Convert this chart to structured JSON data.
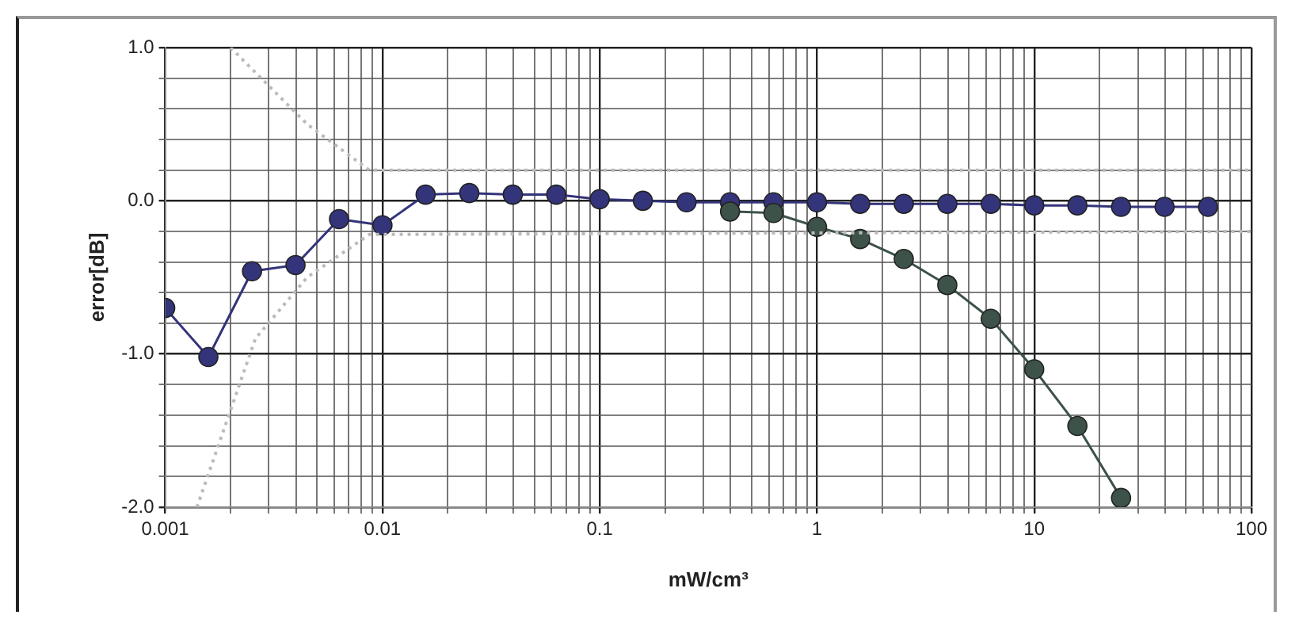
{
  "chart_data": {
    "type": "line",
    "xlabel": "mW/cm³",
    "ylabel": "error[dB]",
    "log": "x",
    "grid": true,
    "legend": false,
    "marker": "circle",
    "line_style": "solid",
    "xlim": [
      0.001,
      100
    ],
    "xticks": [
      0.001,
      {
        "value": 0.002,
        "label": null
      },
      {
        "value": 0.003,
        "label": null
      },
      {
        "value": 0.004,
        "label": null
      },
      {
        "value": 0.005,
        "label": null
      },
      {
        "value": 0.006,
        "label": null
      },
      {
        "value": 0.007,
        "label": null
      },
      {
        "value": 0.008,
        "label": null
      },
      {
        "value": 0.009,
        "label": null
      },
      0.01,
      {
        "value": 0.02,
        "label": null
      },
      {
        "value": 0.03,
        "label": null
      },
      {
        "value": 0.04,
        "label": null
      },
      {
        "value": 0.05,
        "label": null
      },
      {
        "value": 0.06,
        "label": null
      },
      {
        "value": 0.07,
        "label": null
      },
      {
        "value": 0.08,
        "label": null
      },
      {
        "value": 0.09,
        "label": null
      },
      0.1,
      {
        "value": 0.2,
        "label": null
      },
      {
        "value": 0.3,
        "label": null
      },
      {
        "value": 0.4,
        "label": null
      },
      {
        "value": 0.5,
        "label": null
      },
      {
        "value": 0.6,
        "label": null
      },
      {
        "value": 0.7,
        "label": null
      },
      {
        "value": 0.8,
        "label": null
      },
      {
        "value": 0.9,
        "label": null
      },
      1,
      {
        "value": 2,
        "label": null
      },
      {
        "value": 3,
        "label": null
      },
      {
        "value": 4,
        "label": null
      },
      {
        "value": 5,
        "label": null
      },
      {
        "value": 6,
        "label": null
      },
      {
        "value": 7,
        "label": null
      },
      {
        "value": 8,
        "label": null
      },
      {
        "value": 9,
        "label": null
      },
      10,
      {
        "value": 20,
        "label": null
      },
      {
        "value": 30,
        "label": null
      },
      {
        "value": 40,
        "label": null
      },
      {
        "value": 50,
        "label": null
      },
      {
        "value": 60,
        "label": null
      },
      {
        "value": 70,
        "label": null
      },
      {
        "value": 80,
        "label": null
      },
      {
        "value": 90,
        "label": null
      },
      100
    ],
    "ylim": [
      -2,
      1
    ],
    "yticks": [
      {
        "value": -2,
        "label": "-2.0"
      },
      {
        "value": -1.8,
        "label": null
      },
      {
        "value": -1.6,
        "label": null
      },
      {
        "value": -1.4,
        "label": null
      },
      {
        "value": -1.2,
        "label": null
      },
      {
        "value": -1,
        "label": "-1.0"
      },
      {
        "value": -0.8,
        "label": null
      },
      {
        "value": -0.6,
        "label": null
      },
      {
        "value": -0.4,
        "label": null
      },
      {
        "value": -0.2,
        "label": null
      },
      {
        "value": 0,
        "label": "0.0"
      },
      {
        "value": 0.2,
        "label": null
      },
      {
        "value": 0.4,
        "label": null
      },
      {
        "value": 0.6,
        "label": null
      },
      {
        "value": 0.8,
        "label": null
      },
      {
        "value": 1,
        "label": "1.0"
      }
    ],
    "series": [
      {
        "color": "#bbbbbb",
        "marker": "none",
        "line_style": "dotted",
        "x": [
          0.002,
          0.0045,
          0.0087,
          100
        ],
        "values": [
          1.0,
          0.5,
          0.2,
          0.2
        ]
      },
      {
        "color": "#bbbbbb",
        "marker": "none",
        "line_style": "dotted",
        "x": [
          0.0014,
          0.0026,
          0.0045,
          0.0087,
          100
        ],
        "values": [
          -2.0,
          -0.9,
          -0.5,
          -0.22,
          -0.2
        ]
      },
      {
        "color": "#3d5248",
        "x": [
          0.398,
          0.631,
          1,
          1.58,
          2.51,
          3.98,
          6.31,
          10,
          15.8,
          25.1
        ],
        "values": [
          -0.07,
          -0.08,
          -0.17,
          -0.25,
          -0.38,
          -0.55,
          -0.77,
          -1.1,
          -1.47,
          -1.94
        ]
      },
      {
        "color": "#34347a",
        "x": [
          0.001,
          0.00158,
          0.00251,
          0.00398,
          0.00631,
          0.01,
          0.0158,
          0.0251,
          0.0398,
          0.0631,
          0.1,
          0.158,
          0.251,
          0.398,
          0.631,
          1,
          1.58,
          2.51,
          3.98,
          6.31,
          10,
          15.8,
          25.1,
          39.8,
          63.1
        ],
        "values": [
          -0.7,
          -1.02,
          -0.46,
          -0.42,
          -0.12,
          -0.16,
          0.04,
          0.05,
          0.04,
          0.04,
          0.01,
          0.0,
          -0.01,
          -0.01,
          -0.01,
          -0.01,
          -0.02,
          -0.02,
          -0.02,
          -0.02,
          -0.03,
          -0.03,
          -0.04,
          -0.04,
          -0.04
        ]
      }
    ]
  }
}
